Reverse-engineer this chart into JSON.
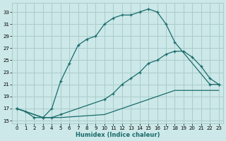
{
  "xlabel": "Humidex (Indice chaleur)",
  "bg_color": "#cce8e8",
  "grid_color": "#aacccc",
  "line_color": "#1a6b6b",
  "xlim": [
    -0.5,
    23.5
  ],
  "ylim": [
    14.5,
    34.5
  ],
  "xticks": [
    0,
    1,
    2,
    3,
    4,
    5,
    6,
    7,
    8,
    9,
    10,
    11,
    12,
    13,
    14,
    15,
    16,
    17,
    18,
    19,
    20,
    21,
    22,
    23
  ],
  "yticks": [
    15,
    17,
    19,
    21,
    23,
    25,
    27,
    29,
    31,
    33
  ],
  "curve1_x": [
    0,
    1,
    2,
    3,
    4,
    5,
    6,
    7,
    8,
    9,
    10,
    11,
    12,
    13,
    14,
    15,
    16,
    17,
    18,
    22,
    23
  ],
  "curve1_y": [
    17.0,
    16.5,
    15.5,
    15.5,
    17.0,
    21.5,
    24.5,
    27.5,
    28.5,
    29.0,
    31.0,
    32.0,
    32.5,
    32.5,
    33.0,
    33.5,
    33.0,
    31.0,
    28.0,
    21.0,
    21.0
  ],
  "curve2_x": [
    0,
    3,
    4,
    5,
    10,
    11,
    12,
    13,
    14,
    15,
    16,
    17,
    18,
    19,
    20,
    21,
    22,
    23
  ],
  "curve2_y": [
    17.0,
    15.5,
    15.5,
    16.0,
    18.5,
    19.5,
    21.0,
    22.0,
    23.0,
    24.5,
    25.0,
    26.0,
    26.5,
    26.5,
    25.5,
    24.0,
    22.0,
    21.0
  ],
  "curve3_x": [
    0,
    3,
    4,
    5,
    10,
    11,
    12,
    13,
    14,
    15,
    16,
    17,
    18,
    19,
    20,
    21,
    22,
    23
  ],
  "curve3_y": [
    17.0,
    15.5,
    15.5,
    15.5,
    16.0,
    16.5,
    17.0,
    17.5,
    18.0,
    18.5,
    19.0,
    19.5,
    20.0,
    20.0,
    20.0,
    20.0,
    20.0,
    20.0
  ],
  "marker1_x": [
    0,
    1,
    2,
    3,
    4,
    5,
    6,
    7,
    8,
    9,
    10,
    11,
    12,
    13,
    14,
    15,
    16,
    17,
    18,
    22,
    23
  ],
  "marker1_y": [
    17.0,
    16.5,
    15.5,
    15.5,
    17.0,
    21.5,
    24.5,
    27.5,
    28.5,
    29.0,
    31.0,
    32.0,
    32.5,
    32.5,
    33.0,
    33.5,
    33.0,
    31.0,
    28.0,
    21.0,
    21.0
  ],
  "marker2_x": [
    0,
    3,
    4,
    5,
    10,
    11,
    12,
    13,
    14,
    15,
    16,
    17,
    18,
    19,
    20,
    21,
    22,
    23
  ],
  "marker2_y": [
    17.0,
    15.5,
    15.5,
    16.0,
    18.5,
    19.5,
    21.0,
    22.0,
    23.0,
    24.5,
    25.0,
    26.0,
    26.5,
    26.5,
    25.5,
    24.0,
    22.0,
    21.0
  ]
}
